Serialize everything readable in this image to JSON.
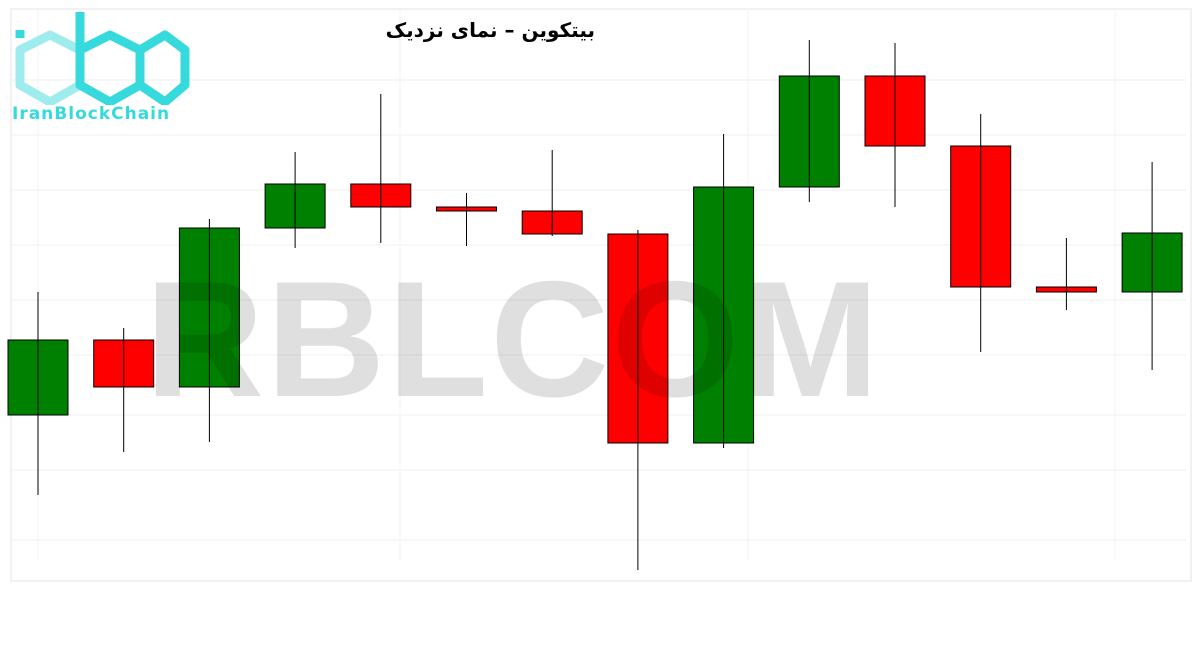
{
  "chart_data": {
    "type": "candlestick",
    "title": "بیتکوین – نمای نزدیک",
    "xlabel": "",
    "ylabel": "",
    "ylim": [
      0,
      600
    ],
    "grid": true,
    "colors": {
      "up": "#008000",
      "down": "#ff0000",
      "wick": "#000000"
    },
    "candles": [
      {
        "open": 185,
        "close": 260,
        "high": 308,
        "low": 105
      },
      {
        "open": 260,
        "close": 213,
        "high": 272,
        "low": 148
      },
      {
        "open": 213,
        "close": 372,
        "high": 381,
        "low": 158
      },
      {
        "open": 372,
        "close": 416,
        "high": 448,
        "low": 352
      },
      {
        "open": 416,
        "close": 393,
        "high": 506,
        "low": 357
      },
      {
        "open": 393,
        "close": 389,
        "high": 407,
        "low": 354
      },
      {
        "open": 389,
        "close": 366,
        "high": 450,
        "low": 364
      },
      {
        "open": 366,
        "close": 157,
        "high": 370,
        "low": 30
      },
      {
        "open": 157,
        "close": 413,
        "high": 466,
        "low": 152
      },
      {
        "open": 413,
        "close": 524,
        "high": 560,
        "low": 398
      },
      {
        "open": 524,
        "close": 454,
        "high": 557,
        "low": 393
      },
      {
        "open": 454,
        "close": 313,
        "high": 486,
        "low": 248
      },
      {
        "open": 313,
        "close": 308,
        "high": 362,
        "low": 290
      },
      {
        "open": 308,
        "close": 367,
        "high": 438,
        "low": 230
      }
    ]
  },
  "watermark": "RBLCOM",
  "logo": {
    "text": "IranBlockChain",
    "color": "#36d9dc"
  }
}
